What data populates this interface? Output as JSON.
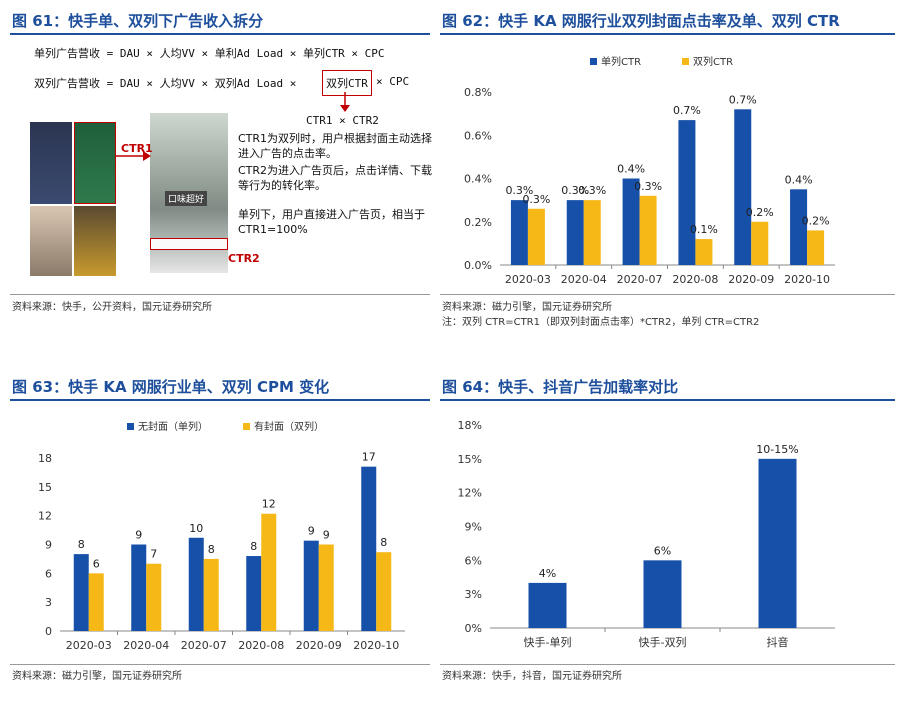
{
  "colors": {
    "blue": "#1650A8",
    "yellow": "#F6B817",
    "title": "#1e4f9c",
    "red": "#c00000"
  },
  "p61": {
    "title": "图 61：快手单、双列下广告收入拆分",
    "formula1": "单列广告营收 = DAU × 人均VV × 单利Ad Load × 单列CTR × CPC",
    "formula2_a": "双列广告营收 = DAU × 人均VV × 双列Ad Load ×",
    "formula2_box": "双列CTR",
    "formula2_b": "× CPC",
    "formula3": "CTR1 × CTR2",
    "ctr1_label": "CTR1",
    "ctr2_label": "CTR2",
    "note1": "CTR1为双列时，用户根据封面主动选择进入广告的点击率。",
    "note2": "CTR2为进入广告页后，点击详情、下载等行为的转化率。",
    "note3": "单列下，用户直接进入广告页，相当于CTR1=100%",
    "image_text": "口味超好",
    "source": "资料来源：快手，公开资料，国元证券研究所"
  },
  "p62": {
    "title": "图 62：快手 KA 网服行业双列封面点击率及单、双列 CTR",
    "source": "资料来源：磁力引擎，国元证券研究所",
    "note": "注：双列 CTR=CTR1（即双列封面点击率）*CTR2，单列 CTR=CTR2"
  },
  "p63": {
    "title": "图 63：快手 KA 网服行业单、双列 CPM 变化",
    "source": "资料来源：磁力引擎，国元证券研究所"
  },
  "p64": {
    "title": "图 64：快手、抖音广告加载率对比",
    "source": "资料来源：快手，抖音，国元证券研究所"
  },
  "chart_data": [
    {
      "id": "fig62",
      "type": "bar",
      "categories": [
        "2020-03",
        "2020-04",
        "2020-07",
        "2020-08",
        "2020-09",
        "2020-10"
      ],
      "series": [
        {
          "name": "单列CTR",
          "color": "#1650A8",
          "values": [
            0.3,
            0.3,
            0.4,
            0.67,
            0.72,
            0.35
          ],
          "labels": [
            "0.3%",
            "0.3%",
            "0.4%",
            "0.7%",
            "0.7%",
            "0.4%"
          ]
        },
        {
          "name": "双列CTR",
          "color": "#F6B817",
          "values": [
            0.26,
            0.3,
            0.32,
            0.12,
            0.2,
            0.16
          ],
          "labels": [
            "0.3%",
            "0.3%",
            "0.3%",
            "0.1%",
            "0.2%",
            "0.2%"
          ]
        }
      ],
      "yticks": [
        "0.0%",
        "0.2%",
        "0.4%",
        "0.6%",
        "0.8%"
      ],
      "ylim": [
        0,
        0.8
      ],
      "grid": false,
      "legend": "top"
    },
    {
      "id": "fig63",
      "type": "bar",
      "categories": [
        "2020-03",
        "2020-04",
        "2020-07",
        "2020-08",
        "2020-09",
        "2020-10"
      ],
      "series": [
        {
          "name": "无封面（单列）",
          "color": "#1650A8",
          "values": [
            8.0,
            9.0,
            9.7,
            7.8,
            9.4,
            17.1
          ],
          "labels": [
            "8",
            "9",
            "10",
            "8",
            "9",
            "17"
          ]
        },
        {
          "name": "有封面（双列）",
          "color": "#F6B817",
          "values": [
            6.0,
            7.0,
            7.5,
            12.2,
            9.0,
            8.2
          ],
          "labels": [
            "6",
            "7",
            "8",
            "12",
            "9",
            "8"
          ]
        }
      ],
      "yticks": [
        "0",
        "3",
        "6",
        "9",
        "12",
        "15",
        "18"
      ],
      "ylim": [
        0,
        18
      ],
      "grid": false,
      "legend": "top-left"
    },
    {
      "id": "fig64",
      "type": "bar",
      "categories": [
        "快手-单列",
        "快手-双列",
        "抖音"
      ],
      "series": [
        {
          "name": "",
          "color": "#1650A8",
          "values": [
            4,
            6,
            15
          ],
          "labels": [
            "4%",
            "6%",
            "10-15%"
          ]
        }
      ],
      "yticks": [
        "0%",
        "3%",
        "6%",
        "9%",
        "12%",
        "15%",
        "18%"
      ],
      "ylim": [
        0,
        18
      ],
      "grid": false,
      "legend": "none"
    }
  ]
}
